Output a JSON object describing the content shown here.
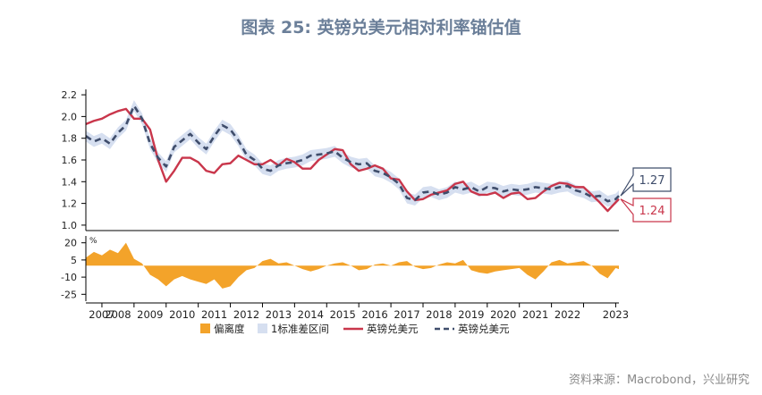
{
  "title": "图表 25: 英镑兑美元相对利率锚估值",
  "source": "资料来源：Macrobond，兴业研究",
  "colors": {
    "band": "#d6dff0",
    "actual": "#c9364b",
    "fair": "#3f4d6b",
    "deviation": "#f3a32a",
    "title": "#6b7f99"
  },
  "chart_data": [
    {
      "type": "line",
      "y_ticks": [
        "2.2",
        "2.0",
        "1.8",
        "1.6",
        "1.4",
        "1.2",
        "1.0"
      ],
      "ylim": [
        0.95,
        2.25
      ],
      "x": [
        2006.5,
        2006.75,
        2007.0,
        2007.25,
        2007.5,
        2007.75,
        2008.0,
        2008.25,
        2008.5,
        2008.75,
        2009.0,
        2009.25,
        2009.5,
        2009.75,
        2010.0,
        2010.25,
        2010.5,
        2010.75,
        2011.0,
        2011.25,
        2011.5,
        2011.75,
        2012.0,
        2012.25,
        2012.5,
        2012.75,
        2013.0,
        2013.25,
        2013.5,
        2013.75,
        2014.0,
        2014.25,
        2014.5,
        2014.75,
        2015.0,
        2015.25,
        2015.5,
        2015.75,
        2016.0,
        2016.25,
        2016.5,
        2016.75,
        2017.0,
        2017.25,
        2017.5,
        2017.75,
        2018.0,
        2018.25,
        2018.5,
        2018.75,
        2019.0,
        2019.25,
        2019.5,
        2019.75,
        2020.0,
        2020.25,
        2020.5,
        2020.75,
        2021.0,
        2021.25,
        2021.5,
        2021.75,
        2022.0,
        2022.25,
        2022.5,
        2022.75,
        2023.0,
        2023.1
      ],
      "series": [
        {
          "name": "英镑兑美元",
          "values": [
            1.93,
            1.96,
            1.98,
            2.02,
            2.05,
            2.07,
            1.98,
            1.98,
            1.88,
            1.6,
            1.4,
            1.5,
            1.62,
            1.62,
            1.58,
            1.5,
            1.48,
            1.56,
            1.57,
            1.64,
            1.6,
            1.56,
            1.56,
            1.6,
            1.55,
            1.61,
            1.58,
            1.52,
            1.52,
            1.6,
            1.65,
            1.7,
            1.69,
            1.56,
            1.5,
            1.52,
            1.55,
            1.52,
            1.43,
            1.42,
            1.31,
            1.23,
            1.24,
            1.28,
            1.3,
            1.32,
            1.38,
            1.4,
            1.31,
            1.28,
            1.28,
            1.3,
            1.25,
            1.29,
            1.3,
            1.24,
            1.25,
            1.31,
            1.36,
            1.39,
            1.38,
            1.35,
            1.35,
            1.28,
            1.21,
            1.13,
            1.21,
            1.24
          ]
        },
        {
          "name": "英镑兑美元",
          "values": [
            1.82,
            1.77,
            1.8,
            1.75,
            1.85,
            1.92,
            2.1,
            1.98,
            1.75,
            1.62,
            1.54,
            1.72,
            1.78,
            1.84,
            1.76,
            1.7,
            1.82,
            1.92,
            1.88,
            1.78,
            1.65,
            1.6,
            1.52,
            1.5,
            1.55,
            1.57,
            1.58,
            1.6,
            1.64,
            1.65,
            1.66,
            1.68,
            1.62,
            1.58,
            1.56,
            1.57,
            1.5,
            1.48,
            1.44,
            1.38,
            1.25,
            1.23,
            1.3,
            1.31,
            1.28,
            1.3,
            1.35,
            1.33,
            1.35,
            1.31,
            1.35,
            1.34,
            1.31,
            1.33,
            1.32,
            1.33,
            1.35,
            1.34,
            1.33,
            1.35,
            1.36,
            1.32,
            1.3,
            1.26,
            1.27,
            1.22,
            1.24,
            1.27
          ]
        }
      ],
      "band_width": 0.05,
      "labels": {
        "fair_last": "1.27",
        "actual_last": "1.24"
      }
    },
    {
      "type": "area",
      "y_unit": "%",
      "y_ticks": [
        "20",
        "5",
        "-10",
        "-25"
      ],
      "ylim": [
        -31,
        26
      ],
      "x": [
        2006.5,
        2006.75,
        2007.0,
        2007.25,
        2007.5,
        2007.75,
        2008.0,
        2008.25,
        2008.5,
        2008.75,
        2009.0,
        2009.25,
        2009.5,
        2009.75,
        2010.0,
        2010.25,
        2010.5,
        2010.75,
        2011.0,
        2011.25,
        2011.5,
        2011.75,
        2012.0,
        2012.25,
        2012.5,
        2012.75,
        2013.0,
        2013.25,
        2013.5,
        2013.75,
        2014.0,
        2014.25,
        2014.5,
        2014.75,
        2015.0,
        2015.25,
        2015.5,
        2015.75,
        2016.0,
        2016.25,
        2016.5,
        2016.75,
        2017.0,
        2017.25,
        2017.5,
        2017.75,
        2018.0,
        2018.25,
        2018.5,
        2018.75,
        2019.0,
        2019.25,
        2019.5,
        2019.75,
        2020.0,
        2020.25,
        2020.5,
        2020.75,
        2021.0,
        2021.25,
        2021.5,
        2021.75,
        2022.0,
        2022.25,
        2022.5,
        2022.75,
        2023.0,
        2023.1
      ],
      "values": [
        7,
        12,
        9,
        14,
        11,
        20,
        6,
        2,
        -8,
        -12,
        -18,
        -12,
        -9,
        -12,
        -14,
        -16,
        -12,
        -20,
        -18,
        -10,
        -4,
        -2,
        4,
        6,
        2,
        3,
        0,
        -3,
        -5,
        -3,
        0,
        2,
        3,
        0,
        -4,
        -3,
        1,
        2,
        0,
        3,
        4,
        -1,
        -3,
        -2,
        1,
        3,
        2,
        5,
        -4,
        -6,
        -7,
        -5,
        -4,
        -3,
        -2,
        -8,
        -12,
        -5,
        3,
        5,
        2,
        3,
        4,
        0,
        -7,
        -11,
        -2,
        -3
      ]
    }
  ],
  "x_ticks": [
    "2007",
    "2008",
    "2009",
    "2010",
    "2011",
    "2012",
    "2013",
    "2014",
    "2015",
    "2016",
    "2017",
    "2018",
    "2019",
    "2020",
    "2021",
    "2022",
    "2023"
  ],
  "legend": [
    {
      "label": "偏离度",
      "type": "swatch",
      "color": "#f3a32a"
    },
    {
      "label": "1标准差区间",
      "type": "swatch",
      "color": "#d6dff0"
    },
    {
      "label": "英镑兑美元",
      "type": "solid",
      "color": "#c9364b"
    },
    {
      "label": "英镑兑美元",
      "type": "dashed",
      "color": "#3f4d6b"
    }
  ]
}
